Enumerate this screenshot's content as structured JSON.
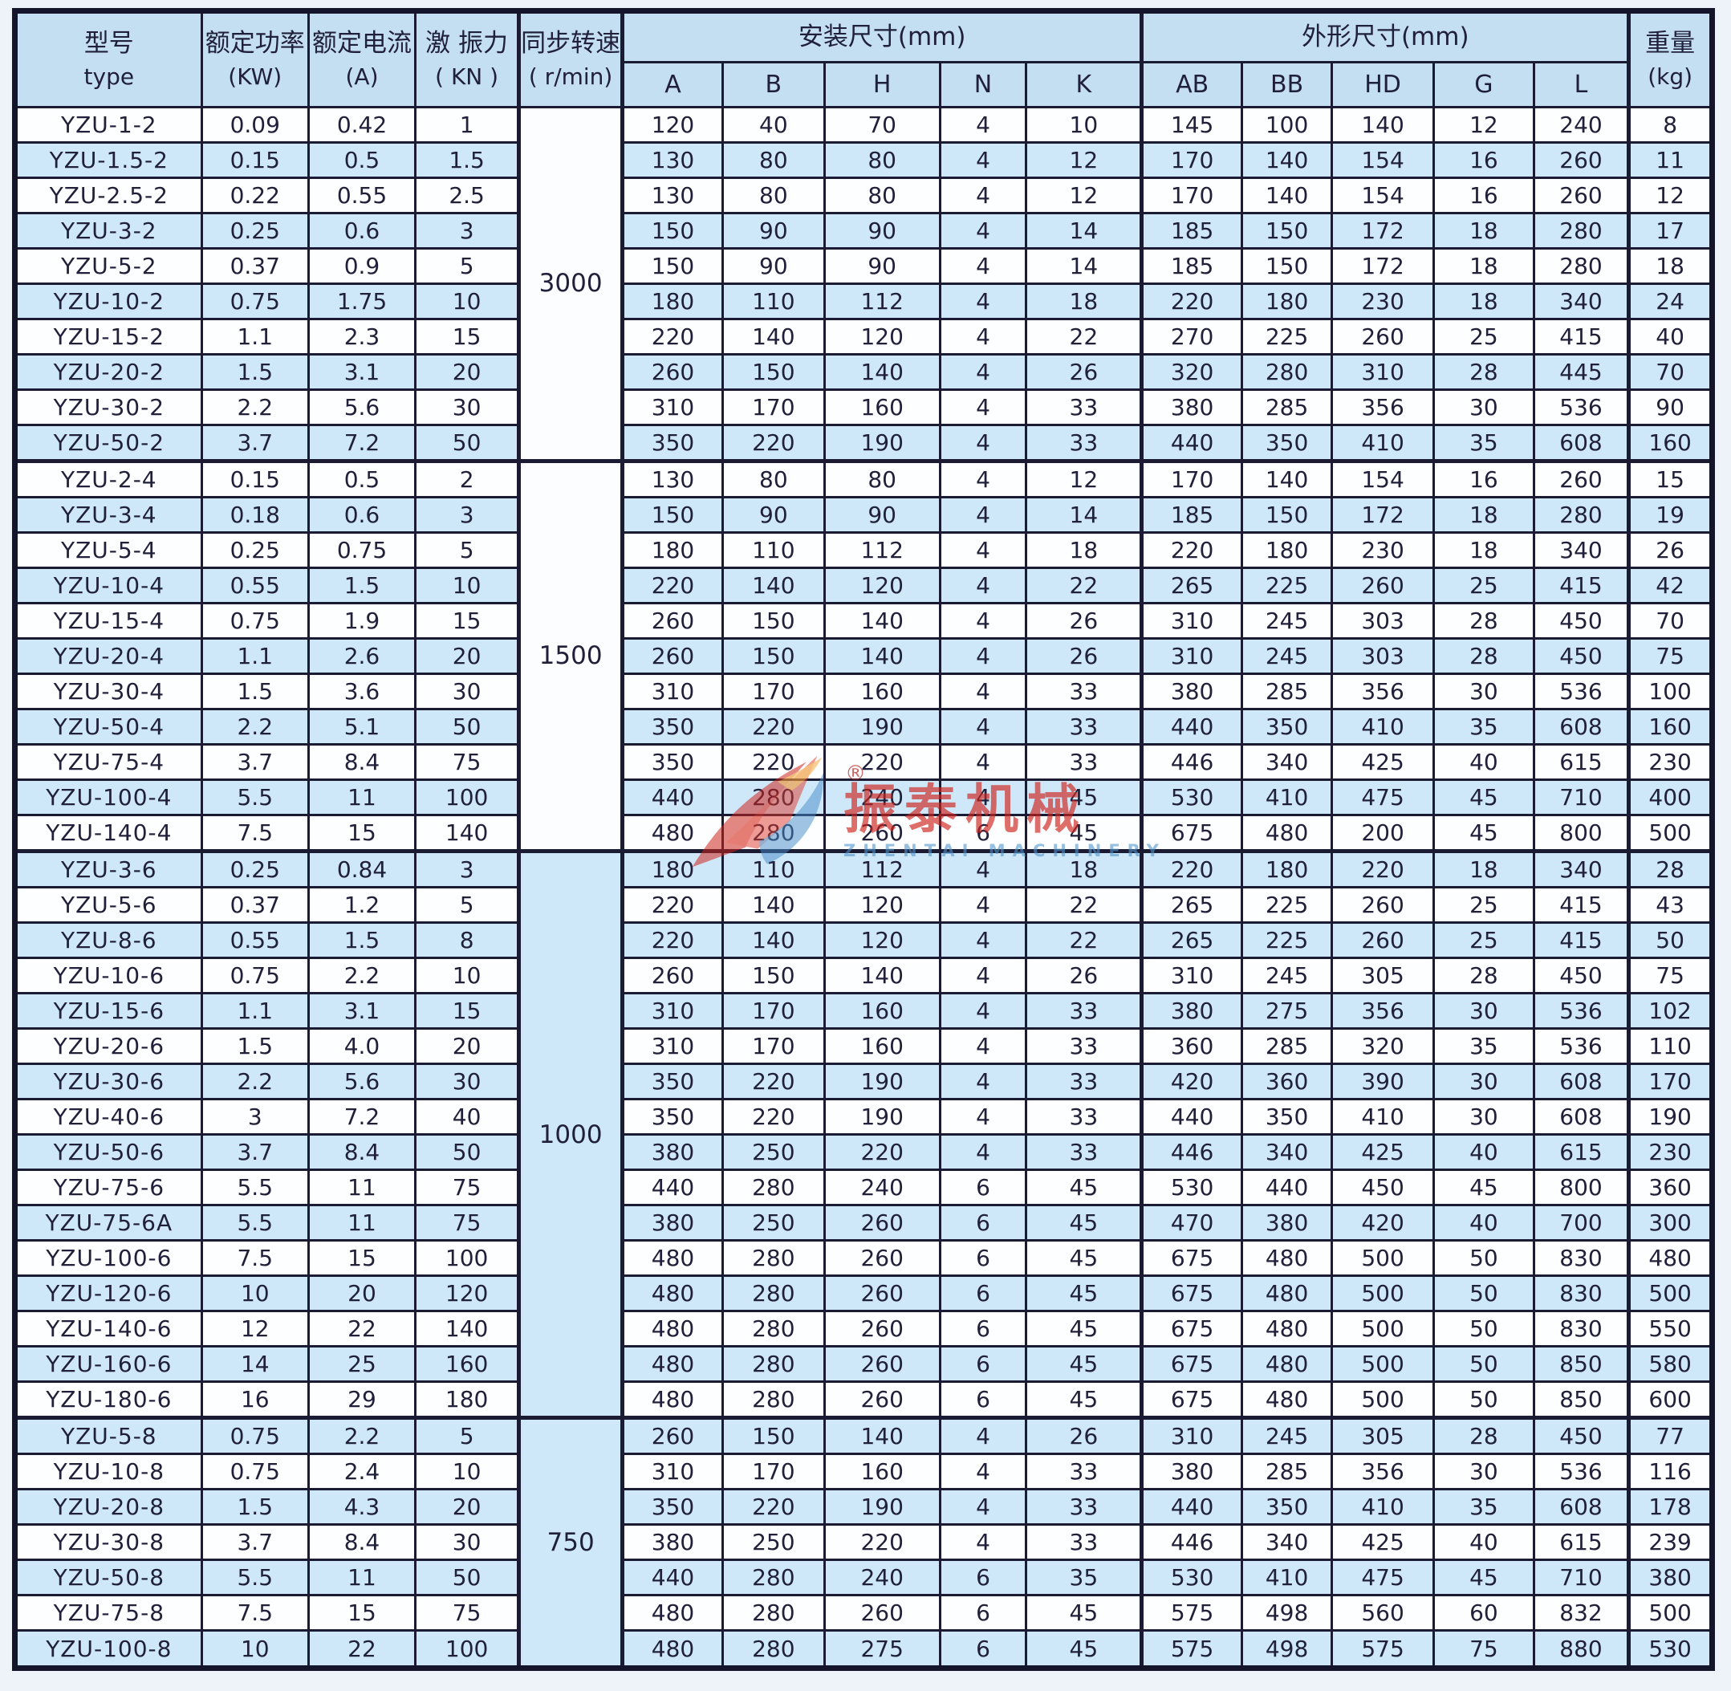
{
  "table": {
    "header": {
      "model_cn": "型号",
      "model_en": "type",
      "power_cn": "额定功率",
      "power_unit": "(KW)",
      "current_cn": "额定电流",
      "current_unit": "(A)",
      "force_cn": "激 振力",
      "force_unit": "( KN )",
      "speed_cn": "同步转速",
      "speed_unit": "( r/min)",
      "install_group": "安装尺寸(mm)",
      "install_cols": [
        "A",
        "B",
        "H",
        "N",
        "K"
      ],
      "outline_group": "外形尺寸(mm)",
      "outline_cols": [
        "AB",
        "BB",
        "HD",
        "G",
        "L"
      ],
      "weight_cn": "重量",
      "weight_unit": "(kg)"
    },
    "colors": {
      "header_bg": "#c5dff2",
      "row_alt_bg": "#cfe8f9",
      "row_bg": "#fdfeff",
      "border": "#1b1b33"
    },
    "groups": [
      {
        "rpm": "3000",
        "rows": [
          [
            "YZU-1-2",
            "0.09",
            "0.42",
            "1",
            "120",
            "40",
            "70",
            "4",
            "10",
            "145",
            "100",
            "140",
            "12",
            "240",
            "8"
          ],
          [
            "YZU-1.5-2",
            "0.15",
            "0.5",
            "1.5",
            "130",
            "80",
            "80",
            "4",
            "12",
            "170",
            "140",
            "154",
            "16",
            "260",
            "11"
          ],
          [
            "YZU-2.5-2",
            "0.22",
            "0.55",
            "2.5",
            "130",
            "80",
            "80",
            "4",
            "12",
            "170",
            "140",
            "154",
            "16",
            "260",
            "12"
          ],
          [
            "YZU-3-2",
            "0.25",
            "0.6",
            "3",
            "150",
            "90",
            "90",
            "4",
            "14",
            "185",
            "150",
            "172",
            "18",
            "280",
            "17"
          ],
          [
            "YZU-5-2",
            "0.37",
            "0.9",
            "5",
            "150",
            "90",
            "90",
            "4",
            "14",
            "185",
            "150",
            "172",
            "18",
            "280",
            "18"
          ],
          [
            "YZU-10-2",
            "0.75",
            "1.75",
            "10",
            "180",
            "110",
            "112",
            "4",
            "18",
            "220",
            "180",
            "230",
            "18",
            "340",
            "24"
          ],
          [
            "YZU-15-2",
            "1.1",
            "2.3",
            "15",
            "220",
            "140",
            "120",
            "4",
            "22",
            "270",
            "225",
            "260",
            "25",
            "415",
            "40"
          ],
          [
            "YZU-20-2",
            "1.5",
            "3.1",
            "20",
            "260",
            "150",
            "140",
            "4",
            "26",
            "320",
            "280",
            "310",
            "28",
            "445",
            "70"
          ],
          [
            "YZU-30-2",
            "2.2",
            "5.6",
            "30",
            "310",
            "170",
            "160",
            "4",
            "33",
            "380",
            "285",
            "356",
            "30",
            "536",
            "90"
          ],
          [
            "YZU-50-2",
            "3.7",
            "7.2",
            "50",
            "350",
            "220",
            "190",
            "4",
            "33",
            "440",
            "350",
            "410",
            "35",
            "608",
            "160"
          ]
        ]
      },
      {
        "rpm": "1500",
        "rows": [
          [
            "YZU-2-4",
            "0.15",
            "0.5",
            "2",
            "130",
            "80",
            "80",
            "4",
            "12",
            "170",
            "140",
            "154",
            "16",
            "260",
            "15"
          ],
          [
            "YZU-3-4",
            "0.18",
            "0.6",
            "3",
            "150",
            "90",
            "90",
            "4",
            "14",
            "185",
            "150",
            "172",
            "18",
            "280",
            "19"
          ],
          [
            "YZU-5-4",
            "0.25",
            "0.75",
            "5",
            "180",
            "110",
            "112",
            "4",
            "18",
            "220",
            "180",
            "230",
            "18",
            "340",
            "26"
          ],
          [
            "YZU-10-4",
            "0.55",
            "1.5",
            "10",
            "220",
            "140",
            "120",
            "4",
            "22",
            "265",
            "225",
            "260",
            "25",
            "415",
            "42"
          ],
          [
            "YZU-15-4",
            "0.75",
            "1.9",
            "15",
            "260",
            "150",
            "140",
            "4",
            "26",
            "310",
            "245",
            "303",
            "28",
            "450",
            "70"
          ],
          [
            "YZU-20-4",
            "1.1",
            "2.6",
            "20",
            "260",
            "150",
            "140",
            "4",
            "26",
            "310",
            "245",
            "303",
            "28",
            "450",
            "75"
          ],
          [
            "YZU-30-4",
            "1.5",
            "3.6",
            "30",
            "310",
            "170",
            "160",
            "4",
            "33",
            "380",
            "285",
            "356",
            "30",
            "536",
            "100"
          ],
          [
            "YZU-50-4",
            "2.2",
            "5.1",
            "50",
            "350",
            "220",
            "190",
            "4",
            "33",
            "440",
            "350",
            "410",
            "35",
            "608",
            "160"
          ],
          [
            "YZU-75-4",
            "3.7",
            "8.4",
            "75",
            "350",
            "220",
            "220",
            "4",
            "33",
            "446",
            "340",
            "425",
            "40",
            "615",
            "230"
          ],
          [
            "YZU-100-4",
            "5.5",
            "11",
            "100",
            "440",
            "280",
            "240",
            "4",
            "45",
            "530",
            "410",
            "475",
            "45",
            "710",
            "400"
          ],
          [
            "YZU-140-4",
            "7.5",
            "15",
            "140",
            "480",
            "280",
            "260",
            "6",
            "45",
            "675",
            "480",
            "200",
            "45",
            "800",
            "500"
          ]
        ]
      },
      {
        "rpm": "1000",
        "rows": [
          [
            "YZU-3-6",
            "0.25",
            "0.84",
            "3",
            "180",
            "110",
            "112",
            "4",
            "18",
            "220",
            "180",
            "220",
            "18",
            "340",
            "28"
          ],
          [
            "YZU-5-6",
            "0.37",
            "1.2",
            "5",
            "220",
            "140",
            "120",
            "4",
            "22",
            "265",
            "225",
            "260",
            "25",
            "415",
            "43"
          ],
          [
            "YZU-8-6",
            "0.55",
            "1.5",
            "8",
            "220",
            "140",
            "120",
            "4",
            "22",
            "265",
            "225",
            "260",
            "25",
            "415",
            "50"
          ],
          [
            "YZU-10-6",
            "0.75",
            "2.2",
            "10",
            "260",
            "150",
            "140",
            "4",
            "26",
            "310",
            "245",
            "305",
            "28",
            "450",
            "75"
          ],
          [
            "YZU-15-6",
            "1.1",
            "3.1",
            "15",
            "310",
            "170",
            "160",
            "4",
            "33",
            "380",
            "275",
            "356",
            "30",
            "536",
            "102"
          ],
          [
            "YZU-20-6",
            "1.5",
            "4.0",
            "20",
            "310",
            "170",
            "160",
            "4",
            "33",
            "360",
            "285",
            "320",
            "35",
            "536",
            "110"
          ],
          [
            "YZU-30-6",
            "2.2",
            "5.6",
            "30",
            "350",
            "220",
            "190",
            "4",
            "33",
            "420",
            "360",
            "390",
            "30",
            "608",
            "170"
          ],
          [
            "YZU-40-6",
            "3",
            "7.2",
            "40",
            "350",
            "220",
            "190",
            "4",
            "33",
            "440",
            "350",
            "410",
            "30",
            "608",
            "190"
          ],
          [
            "YZU-50-6",
            "3.7",
            "8.4",
            "50",
            "380",
            "250",
            "220",
            "4",
            "33",
            "446",
            "340",
            "425",
            "40",
            "615",
            "230"
          ],
          [
            "YZU-75-6",
            "5.5",
            "11",
            "75",
            "440",
            "280",
            "240",
            "6",
            "45",
            "530",
            "440",
            "450",
            "45",
            "800",
            "360"
          ],
          [
            "YZU-75-6A",
            "5.5",
            "11",
            "75",
            "380",
            "250",
            "260",
            "6",
            "45",
            "470",
            "380",
            "420",
            "40",
            "700",
            "300"
          ],
          [
            "YZU-100-6",
            "7.5",
            "15",
            "100",
            "480",
            "280",
            "260",
            "6",
            "45",
            "675",
            "480",
            "500",
            "50",
            "830",
            "480"
          ],
          [
            "YZU-120-6",
            "10",
            "20",
            "120",
            "480",
            "280",
            "260",
            "6",
            "45",
            "675",
            "480",
            "500",
            "50",
            "830",
            "500"
          ],
          [
            "YZU-140-6",
            "12",
            "22",
            "140",
            "480",
            "280",
            "260",
            "6",
            "45",
            "675",
            "480",
            "500",
            "50",
            "830",
            "550"
          ],
          [
            "YZU-160-6",
            "14",
            "25",
            "160",
            "480",
            "280",
            "260",
            "6",
            "45",
            "675",
            "480",
            "500",
            "50",
            "850",
            "580"
          ],
          [
            "YZU-180-6",
            "16",
            "29",
            "180",
            "480",
            "280",
            "260",
            "6",
            "45",
            "675",
            "480",
            "500",
            "50",
            "850",
            "600"
          ]
        ]
      },
      {
        "rpm": "750",
        "rows": [
          [
            "YZU-5-8",
            "0.75",
            "2.2",
            "5",
            "260",
            "150",
            "140",
            "4",
            "26",
            "310",
            "245",
            "305",
            "28",
            "450",
            "77"
          ],
          [
            "YZU-10-8",
            "0.75",
            "2.4",
            "10",
            "310",
            "170",
            "160",
            "4",
            "33",
            "380",
            "285",
            "356",
            "30",
            "536",
            "116"
          ],
          [
            "YZU-20-8",
            "1.5",
            "4.3",
            "20",
            "350",
            "220",
            "190",
            "4",
            "33",
            "440",
            "350",
            "410",
            "35",
            "608",
            "178"
          ],
          [
            "YZU-30-8",
            "3.7",
            "8.4",
            "30",
            "380",
            "250",
            "220",
            "4",
            "33",
            "446",
            "340",
            "425",
            "40",
            "615",
            "239"
          ],
          [
            "YZU-50-8",
            "5.5",
            "11",
            "50",
            "440",
            "280",
            "240",
            "6",
            "35",
            "530",
            "410",
            "475",
            "45",
            "710",
            "380"
          ],
          [
            "YZU-75-8",
            "7.5",
            "15",
            "75",
            "480",
            "280",
            "260",
            "6",
            "45",
            "575",
            "498",
            "560",
            "60",
            "832",
            "500"
          ],
          [
            "YZU-100-8",
            "10",
            "22",
            "100",
            "480",
            "280",
            "275",
            "6",
            "45",
            "575",
            "498",
            "575",
            "75",
            "880",
            "530"
          ]
        ]
      }
    ]
  },
  "watermark": {
    "registered": "®",
    "text": "振泰机械",
    "subtext": "ZHENTAI MACHINERY",
    "red": "#cd231c",
    "blue": "#5096cd"
  }
}
